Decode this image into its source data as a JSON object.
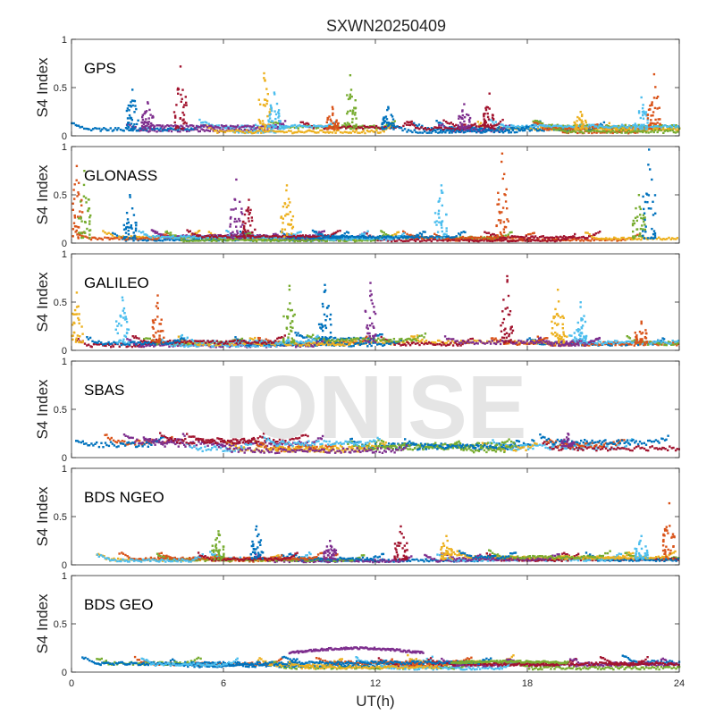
{
  "figure_title": "SXWN20250409",
  "watermark": "IONISE",
  "colors": [
    "#0072BD",
    "#D95319",
    "#EDB120",
    "#7E2F8E",
    "#77AC30",
    "#4DBEEE",
    "#A2142F"
  ],
  "chart_data": [
    {
      "type": "scatter",
      "label": "GPS",
      "ylabel": "S4 Index",
      "xlabel": "",
      "xlim": [
        0,
        24
      ],
      "ylim": [
        0,
        1
      ],
      "yticks": [
        "0",
        "0.5",
        "1"
      ],
      "xticks": [
        "",
        "",
        "",
        "",
        ""
      ],
      "grid": false,
      "baseline": 0.07,
      "spikes": [
        [
          2.4,
          0.48
        ],
        [
          3.0,
          0.35
        ],
        [
          4.3,
          0.72
        ],
        [
          7.6,
          0.65
        ],
        [
          8.0,
          0.45
        ],
        [
          10.3,
          0.3
        ],
        [
          11.0,
          0.63
        ],
        [
          12.5,
          0.3
        ],
        [
          15.5,
          0.33
        ],
        [
          16.5,
          0.44
        ],
        [
          20.1,
          0.25
        ],
        [
          22.5,
          0.4
        ],
        [
          23.0,
          0.64
        ]
      ]
    },
    {
      "type": "scatter",
      "label": "GLONASS",
      "ylabel": "S4 Index",
      "xlabel": "",
      "xlim": [
        0,
        24
      ],
      "ylim": [
        0,
        1
      ],
      "yticks": [
        "0",
        "0.5",
        "1"
      ],
      "xticks": [
        "",
        "",
        "",
        "",
        ""
      ],
      "grid": false,
      "baseline": 0.05,
      "spikes": [
        [
          0.2,
          0.8
        ],
        [
          0.5,
          0.75
        ],
        [
          2.3,
          0.5
        ],
        [
          6.5,
          0.66
        ],
        [
          7.0,
          0.45
        ],
        [
          8.5,
          0.6
        ],
        [
          14.6,
          0.6
        ],
        [
          17.0,
          0.93
        ],
        [
          22.4,
          0.5
        ],
        [
          22.8,
          0.97
        ]
      ]
    },
    {
      "type": "scatter",
      "label": "GALILEO",
      "ylabel": "S4 Index",
      "xlabel": "",
      "xlim": [
        0,
        24
      ],
      "ylim": [
        0,
        1
      ],
      "yticks": [
        "0",
        "0.5",
        "1"
      ],
      "xticks": [
        "",
        "",
        "",
        "",
        ""
      ],
      "grid": false,
      "baseline": 0.08,
      "spikes": [
        [
          0.2,
          0.6
        ],
        [
          2.0,
          0.55
        ],
        [
          3.4,
          0.57
        ],
        [
          8.6,
          0.67
        ],
        [
          10.0,
          0.68
        ],
        [
          11.8,
          0.7
        ],
        [
          17.2,
          0.77
        ],
        [
          19.2,
          0.63
        ],
        [
          20.1,
          0.5
        ],
        [
          22.5,
          0.3
        ]
      ]
    },
    {
      "type": "scatter",
      "label": "SBAS",
      "ylabel": "S4 Index",
      "xlabel": "",
      "xlim": [
        0,
        24
      ],
      "ylim": [
        0,
        1
      ],
      "yticks": [
        "0",
        "0.5",
        "1"
      ],
      "xticks": [
        "",
        "",
        "",
        "",
        ""
      ],
      "grid": false,
      "baseline": 0.12,
      "spikes": [
        [
          19.6,
          0.25
        ]
      ]
    },
    {
      "type": "scatter",
      "label": "BDS NGEO",
      "ylabel": "S4 Index",
      "xlabel": "",
      "xlim": [
        0,
        24
      ],
      "ylim": [
        0,
        1
      ],
      "yticks": [
        "0",
        "0.5",
        "1"
      ],
      "xticks": [
        "",
        "",
        "",
        "",
        ""
      ],
      "grid": false,
      "baseline": 0.06,
      "spikes": [
        [
          5.8,
          0.35
        ],
        [
          7.3,
          0.4
        ],
        [
          10.2,
          0.25
        ],
        [
          13.0,
          0.4
        ],
        [
          14.8,
          0.3
        ],
        [
          22.5,
          0.3
        ],
        [
          23.6,
          0.64
        ]
      ]
    },
    {
      "type": "scatter",
      "label": "BDS GEO",
      "ylabel": "S4 Index",
      "xlabel": "UT(h)",
      "xlim": [
        0,
        24
      ],
      "ylim": [
        0,
        1
      ],
      "yticks": [
        "0",
        "0.5",
        "1"
      ],
      "xticks": [
        "0",
        "6",
        "12",
        "18",
        "24"
      ],
      "grid": false,
      "baseline": 0.07,
      "spikes": [],
      "bands": [
        {
          "x0": 8.6,
          "x1": 13.9,
          "y": 0.2,
          "peak": 0.25
        },
        {
          "x0": 15.0,
          "x1": 19.6,
          "y": 0.1,
          "peak": 0.11
        }
      ]
    }
  ]
}
